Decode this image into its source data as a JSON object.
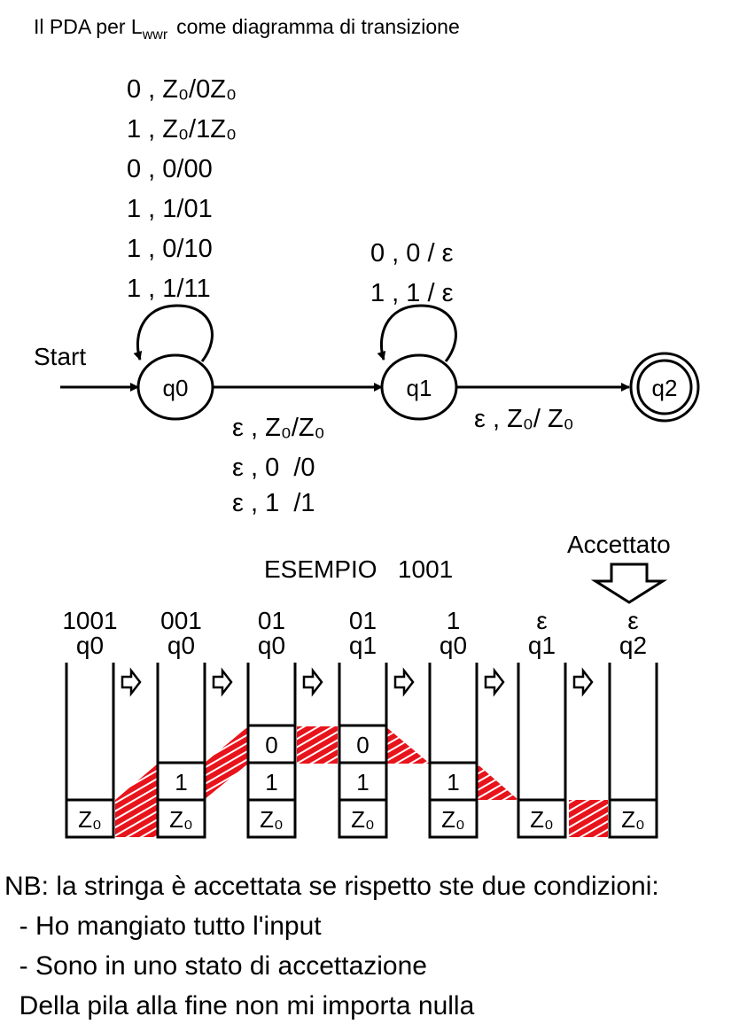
{
  "title": {
    "before": "Il PDA per L",
    "subscript": "wwr",
    "after": "come diagramma di transizione"
  },
  "start_label": "Start",
  "states": [
    {
      "label": "q0"
    },
    {
      "label": "q1"
    },
    {
      "label": "q2"
    }
  ],
  "loops": [
    {
      "state": "q0",
      "labels": [
        "0 , Z₀/0Z₀",
        "1 , Z₀/1Z₀",
        "0 , 0/00",
        "1 , 1/01",
        "1 , 0/10",
        "1 , 1/11"
      ]
    },
    {
      "state": "q1",
      "labels": [
        "0 , 0 / ε",
        "1 , 1 / ε"
      ]
    }
  ],
  "edges": [
    {
      "from": "q0",
      "to": "q1",
      "labels": [
        "ε , Z₀/Z₀",
        "ε , 0  /0",
        "ε , 1  /1"
      ]
    },
    {
      "from": "q1",
      "to": "q2",
      "labels": [
        "ε , Z₀/ Z₀"
      ]
    }
  ],
  "example": {
    "title": "ESEMPIO   1001",
    "accepted": "Accettato",
    "stacks": [
      {
        "input": "1001",
        "state": "q0",
        "cells": [
          "Z₀"
        ]
      },
      {
        "input": "001",
        "state": "q0",
        "cells": [
          "Z₀",
          "1"
        ]
      },
      {
        "input": "01",
        "state": "q0",
        "cells": [
          "Z₀",
          "1",
          "0"
        ]
      },
      {
        "input": "01",
        "state": "q1",
        "cells": [
          "Z₀",
          "1",
          "0"
        ]
      },
      {
        "input": "1",
        "state": "q0",
        "cells": [
          "Z₀",
          "1"
        ]
      },
      {
        "input": "ε",
        "state": "q1",
        "cells": [
          "Z₀"
        ]
      },
      {
        "input": "ε",
        "state": "q2",
        "cells": [
          "Z₀"
        ]
      }
    ]
  },
  "note": [
    "NB: la stringa è accettata se rispetto ste due condizioni:",
    "  - Ho mangiato tutto l'input",
    "  - Sono in uno stato di accettazione",
    "  Della pila alla fine non mi importa nulla"
  ]
}
